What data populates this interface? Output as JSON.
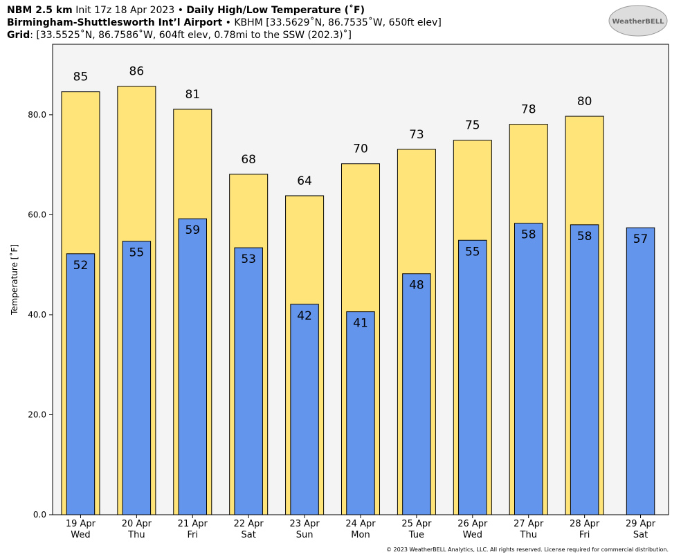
{
  "header": {
    "line1": [
      "NBM 2.5 km",
      " Init 17z 18 Apr 2023 • ",
      "Daily High/Low Temperature (˚F)"
    ],
    "line2": [
      "Birmingham-Shuttlesworth Int’l Airport",
      " • KBHM [33.5629˚N, 86.7535˚W, 650ft elev]"
    ],
    "line3": [
      "Grid",
      ": [33.5525˚N, 86.7586˚W, 604ft elev, 0.78mi to the SSW (202.3)˚]"
    ],
    "logo": "WeatherBELL"
  },
  "footer": "© 2023 WeatherBELL Analytics, LLC. All rights reserved. License required for commercial distribution.",
  "chart_data": {
    "type": "bar",
    "ylabel": "Temperature [˚F]",
    "categories": [
      "19 Apr",
      "20 Apr",
      "21 Apr",
      "22 Apr",
      "23 Apr",
      "24 Apr",
      "25 Apr",
      "26 Apr",
      "27 Apr",
      "28 Apr",
      "29 Apr"
    ],
    "weekdays": [
      "Wed",
      "Thu",
      "Fri",
      "Sat",
      "Sun",
      "Mon",
      "Tue",
      "Wed",
      "Thu",
      "Fri",
      "Sat"
    ],
    "series": [
      {
        "name": "High",
        "color": "#ffe47a",
        "values": [
          84.6,
          85.7,
          81.1,
          68.1,
          63.8,
          70.2,
          73.1,
          74.9,
          78.1,
          79.7,
          null
        ],
        "value_labels": [
          "85",
          "86",
          "81",
          "68",
          "64",
          "70",
          "73",
          "75",
          "78",
          "80",
          null
        ]
      },
      {
        "name": "Low",
        "color": "#6495ed",
        "values": [
          52.2,
          54.7,
          59.2,
          53.4,
          42.1,
          40.6,
          48.2,
          54.9,
          58.3,
          58.0,
          57.4
        ],
        "value_labels": [
          "52",
          "55",
          "59",
          "53",
          "42",
          "41",
          "48",
          "55",
          "58",
          "58",
          "57"
        ]
      }
    ],
    "ylim": [
      0,
      94.1
    ],
    "yticks": [
      {
        "value": 0,
        "label": "0.0"
      },
      {
        "value": 20,
        "label": "20.0"
      },
      {
        "value": 40,
        "label": "40.0"
      },
      {
        "value": 60,
        "label": "60.0"
      },
      {
        "value": 80,
        "label": "80.0"
      }
    ],
    "grid": false
  }
}
